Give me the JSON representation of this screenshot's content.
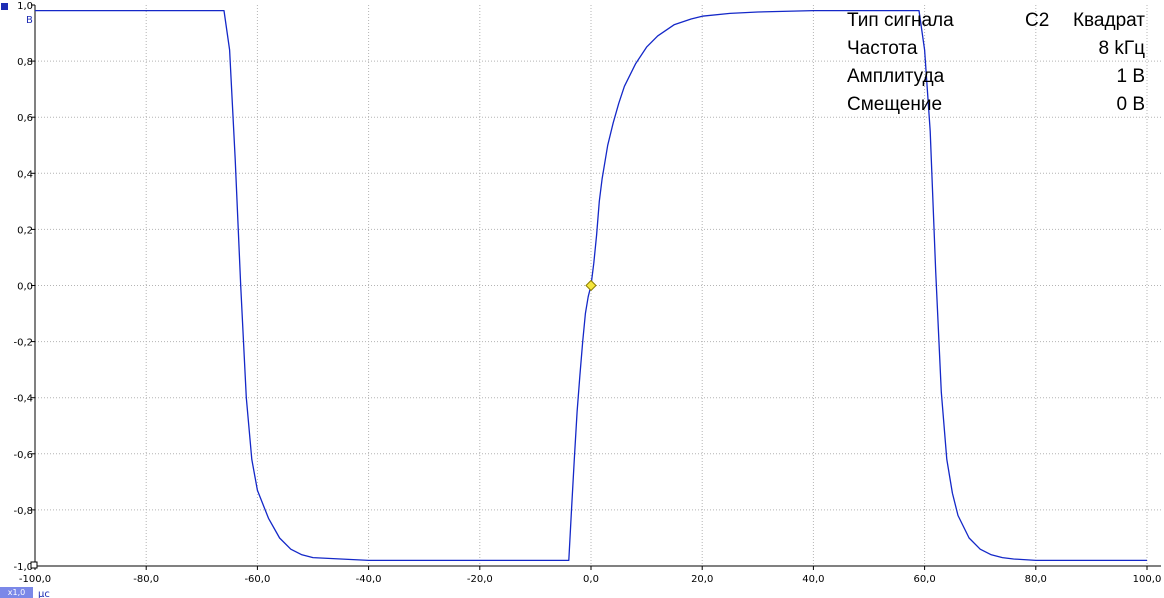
{
  "chart_data": {
    "type": "line",
    "xlabel": "",
    "ylabel": "",
    "x_unit": "µс",
    "y_unit": "В",
    "xlim": [
      -100,
      100
    ],
    "ylim": [
      -1,
      1
    ],
    "x_ticks": [
      "-100,0",
      "-80,0",
      "-60,0",
      "-40,0",
      "-20,0",
      "0,0",
      "20,0",
      "40,0",
      "60,0",
      "80,0",
      "100,0"
    ],
    "y_ticks": [
      "1,0",
      "0,8",
      "0,6",
      "0,4",
      "0,2",
      "0,0",
      "-0,2",
      "-0,4",
      "-0,6",
      "-0,8",
      "-1,0"
    ],
    "grid": true,
    "series": [
      {
        "color": "#1428c8",
        "x": [
          -100,
          -66,
          -65,
          -64,
          -63,
          -62,
          -61,
          -60,
          -58,
          -56,
          -54,
          -52,
          -50,
          -45,
          -40,
          -30,
          -20,
          -10,
          -4,
          -3.5,
          -3,
          -2.5,
          -2,
          -1.5,
          -1,
          -0.5,
          0,
          0.5,
          1,
          1.5,
          2,
          3,
          4,
          5,
          6,
          8,
          10,
          12,
          15,
          18,
          20,
          25,
          30,
          40,
          50,
          59,
          60,
          61,
          62,
          63,
          64,
          65,
          66,
          68,
          70,
          72,
          74,
          76,
          80,
          90,
          100
        ],
        "y": [
          0.98,
          0.98,
          0.84,
          0.45,
          0.0,
          -0.4,
          -0.62,
          -0.73,
          -0.83,
          -0.9,
          -0.94,
          -0.96,
          -0.97,
          -0.975,
          -0.98,
          -0.98,
          -0.98,
          -0.98,
          -0.98,
          -0.8,
          -0.62,
          -0.45,
          -0.32,
          -0.2,
          -0.1,
          -0.04,
          0.0,
          0.08,
          0.18,
          0.3,
          0.38,
          0.5,
          0.58,
          0.65,
          0.71,
          0.79,
          0.85,
          0.89,
          0.93,
          0.95,
          0.96,
          0.97,
          0.975,
          0.98,
          0.98,
          0.98,
          0.84,
          0.55,
          0.05,
          -0.38,
          -0.62,
          -0.74,
          -0.82,
          -0.9,
          -0.94,
          -0.96,
          -0.97,
          -0.975,
          -0.98,
          -0.98,
          -0.98
        ]
      }
    ],
    "trigger_marker": {
      "x": 0,
      "y": 0,
      "color": "#f5e63c"
    }
  },
  "info_panel": {
    "rows": [
      {
        "label": "Тип сигнала",
        "channel": "C2",
        "value": "Квадрат"
      },
      {
        "label": "Частота",
        "channel": "",
        "value": "8 kГц"
      },
      {
        "label": "Амплитуда",
        "channel": "",
        "value": "1 В"
      },
      {
        "label": "Смещение",
        "channel": "",
        "value": "0 В"
      }
    ]
  },
  "zoom_badge": "x1,0"
}
